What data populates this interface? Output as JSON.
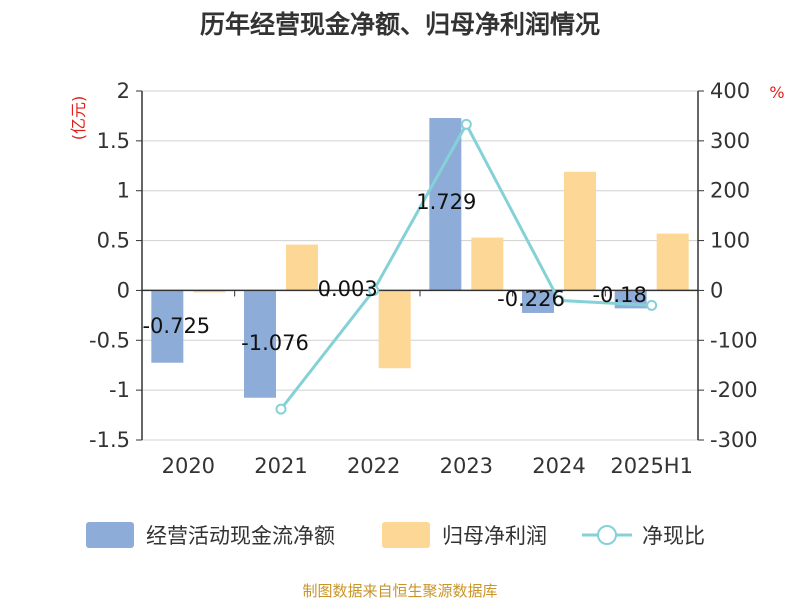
{
  "chart_data": {
    "type": "bar",
    "title": "历年经营现金净额、归母净利润情况",
    "categories": [
      "2020",
      "2021",
      "2022",
      "2023",
      "2024",
      "2025H1"
    ],
    "left_axis": {
      "unit": "(亿元)",
      "ylim": [
        -1.5,
        2
      ],
      "ticks": [
        "2",
        "1.5",
        "1",
        "0.5",
        "0",
        "-0.5",
        "-1",
        "-1.5"
      ],
      "tick_values": [
        2,
        1.5,
        1,
        0.5,
        0,
        -0.5,
        -1,
        -1.5
      ]
    },
    "right_axis": {
      "unit": "%",
      "ylim": [
        -300,
        400
      ],
      "ticks": [
        "400",
        "300",
        "200",
        "100",
        "0",
        "-100",
        "-200",
        "-300"
      ],
      "tick_values": [
        400,
        300,
        200,
        100,
        0,
        -100,
        -200,
        -300
      ]
    },
    "series": [
      {
        "name": "经营活动现金流净额",
        "kind": "bar",
        "axis": "left",
        "color": "#8eacd8",
        "values": [
          -0.725,
          -1.076,
          0.003,
          1.729,
          -0.226,
          -0.18
        ],
        "labels": [
          "-0.725",
          "-1.076",
          "0.003",
          "1.729",
          "-0.226",
          "-0.18"
        ]
      },
      {
        "name": "归母净利润",
        "kind": "bar",
        "axis": "left",
        "color": "#fdd795",
        "values": [
          -0.02,
          0.46,
          -0.78,
          0.53,
          1.19,
          0.57
        ]
      },
      {
        "name": "净现比",
        "kind": "line",
        "axis": "right",
        "color": "#85d1d8",
        "values": [
          null,
          -238,
          0,
          333,
          -20,
          -30
        ]
      }
    ],
    "grid": true,
    "legend_position": "bottom"
  },
  "footer": {
    "source": "制图数据来自恒生聚源数据库"
  }
}
